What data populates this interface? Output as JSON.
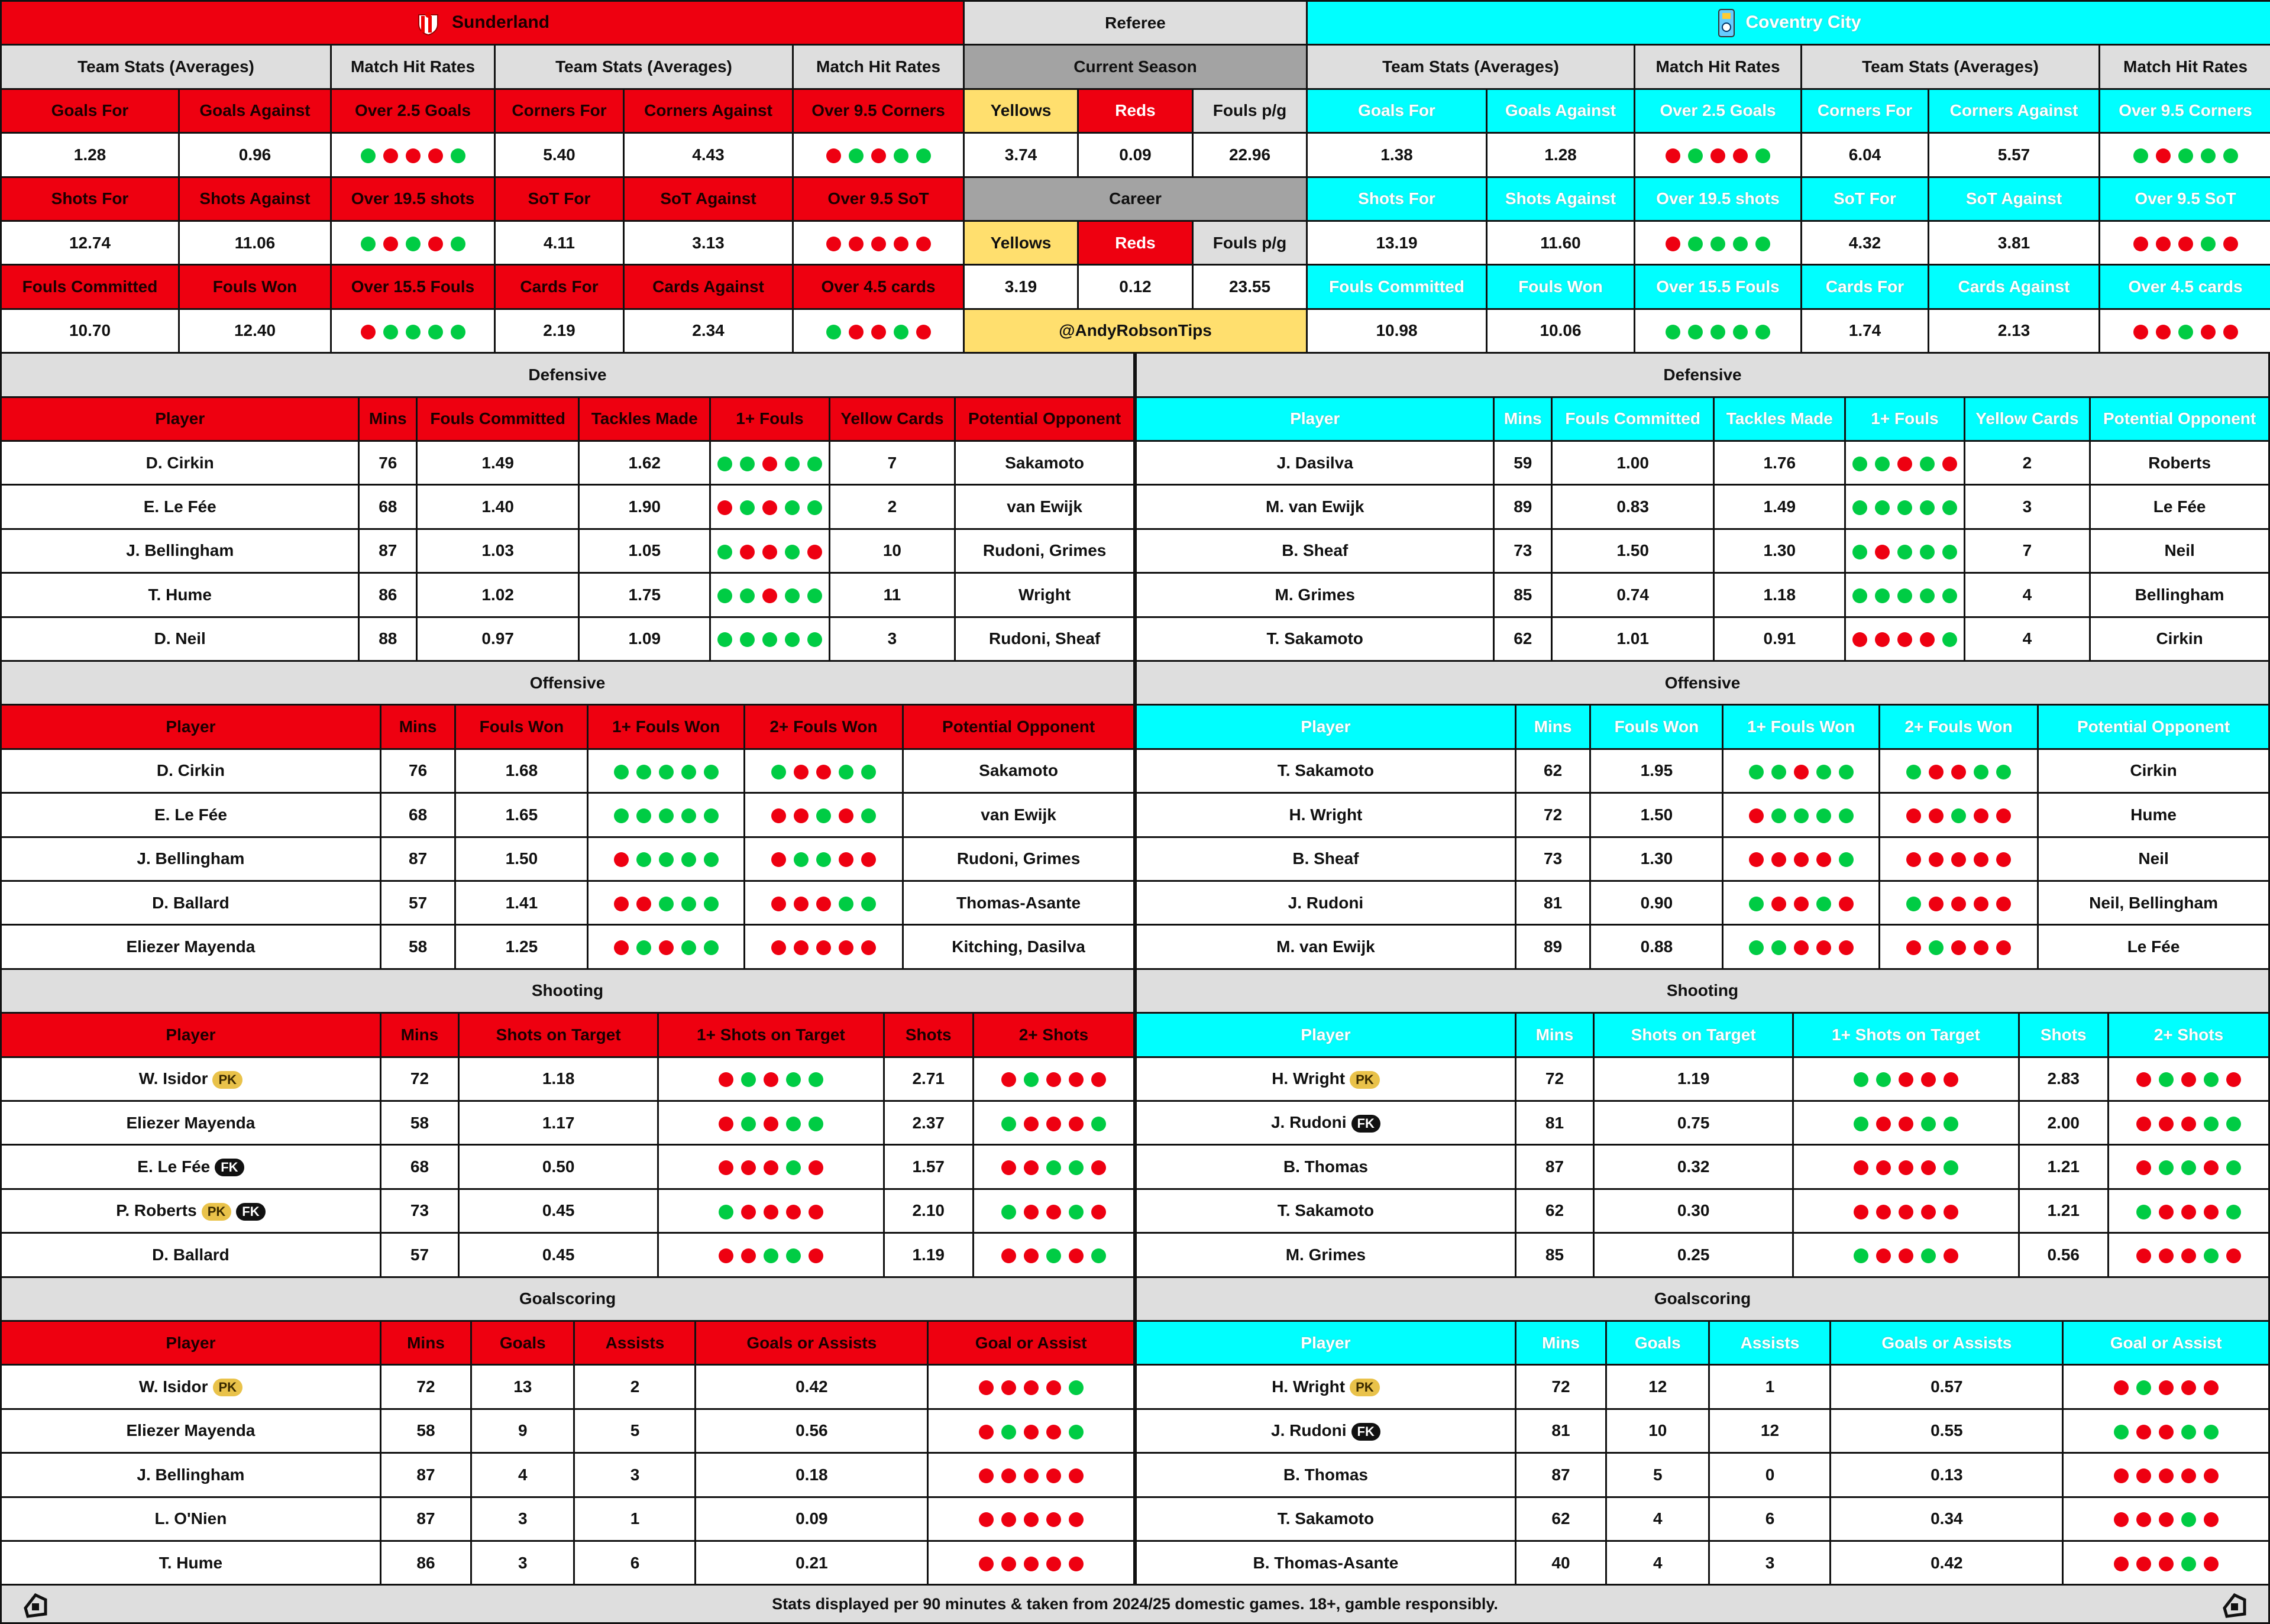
{
  "colors": {
    "sunderland": "#ee0010",
    "coventry": "#00ffff",
    "hit": "#00cc44",
    "miss": "#ee0011",
    "neutral": "#dedede",
    "referee_section": "#a3a3a3",
    "yellow": "#ffdf6e"
  },
  "teams": [
    {
      "name": "Sunderland",
      "theme": "red",
      "crest_icon": "sunderland-crest-icon",
      "group_labels": [
        "Team Stats (Averages)",
        "Match Hit Rates",
        "Team Stats (Averages)",
        "Match Hit Rates"
      ],
      "stats": [
        [
          {
            "label": "Goals For",
            "value": "1.28"
          },
          {
            "label": "Goals Against",
            "value": "0.96"
          },
          {
            "label": "Over 2.5 Goals",
            "dots": "GRRRG"
          },
          {
            "label": "Corners For",
            "value": "5.40"
          },
          {
            "label": "Corners Against",
            "value": "4.43"
          },
          {
            "label": "Over 9.5 Corners",
            "dots": "RGRGG"
          }
        ],
        [
          {
            "label": "Shots For",
            "value": "12.74"
          },
          {
            "label": "Shots Against",
            "value": "11.06"
          },
          {
            "label": "Over 19.5 shots",
            "dots": "GRGRG"
          },
          {
            "label": "SoT For",
            "value": "4.11"
          },
          {
            "label": "SoT Against",
            "value": "3.13"
          },
          {
            "label": "Over 9.5 SoT",
            "dots": "RRRRR"
          }
        ],
        [
          {
            "label": "Fouls Committed",
            "value": "10.70"
          },
          {
            "label": "Fouls Won",
            "value": "12.40"
          },
          {
            "label": "Over 15.5 Fouls",
            "dots": "RGGGG"
          },
          {
            "label": "Cards For",
            "value": "2.19"
          },
          {
            "label": "Cards Against",
            "value": "2.34"
          },
          {
            "label": "Over 4.5 cards",
            "dots": "GRRGR"
          }
        ]
      ],
      "sections": [
        {
          "title": "Defensive",
          "columns": [
            "Player",
            "Mins",
            "Fouls Committed",
            "Tackles Made",
            "1+ Fouls",
            "Yellow Cards",
            "Potential Opponent"
          ],
          "dot_columns": [
            4
          ],
          "rows": [
            {
              "cells": [
                "D. Cirkin",
                "76",
                "1.49",
                "1.62",
                "GGRGG",
                "7",
                "Sakamoto"
              ]
            },
            {
              "cells": [
                "E. Le Fée",
                "68",
                "1.40",
                "1.90",
                "RGRGG",
                "2",
                "van Ewijk"
              ]
            },
            {
              "cells": [
                "J. Bellingham",
                "87",
                "1.03",
                "1.05",
                "GRRGR",
                "10",
                "Rudoni, Grimes"
              ]
            },
            {
              "cells": [
                "T. Hume",
                "86",
                "1.02",
                "1.75",
                "GGRGG",
                "11",
                "Wright"
              ]
            },
            {
              "cells": [
                "D. Neil",
                "88",
                "0.97",
                "1.09",
                "GGGGG",
                "3",
                "Rudoni, Sheaf"
              ]
            }
          ]
        },
        {
          "title": "Offensive",
          "columns": [
            "Player",
            "Mins",
            "Fouls Won",
            "1+ Fouls Won",
            "2+ Fouls Won",
            "Potential Opponent"
          ],
          "dot_columns": [
            3,
            4
          ],
          "rows": [
            {
              "cells": [
                "D. Cirkin",
                "76",
                "1.68",
                "GGGGG",
                "GRRGG",
                "Sakamoto"
              ]
            },
            {
              "cells": [
                "E. Le Fée",
                "68",
                "1.65",
                "GGGGG",
                "RRGRG",
                "van Ewijk"
              ]
            },
            {
              "cells": [
                "J. Bellingham",
                "87",
                "1.50",
                "RGGGG",
                "RGGRR",
                "Rudoni, Grimes"
              ]
            },
            {
              "cells": [
                "D. Ballard",
                "57",
                "1.41",
                "RRGGG",
                "RRRGG",
                "Thomas-Asante"
              ]
            },
            {
              "cells": [
                "Eliezer Mayenda",
                "58",
                "1.25",
                "RGRGG",
                "RRRRR",
                "Kitching, Dasilva"
              ]
            }
          ]
        },
        {
          "title": "Shooting",
          "columns": [
            "Player",
            "Mins",
            "Shots on Target",
            "1+ Shots on Target",
            "Shots",
            "2+ Shots"
          ],
          "dot_columns": [
            3,
            5
          ],
          "rows": [
            {
              "cells": [
                "W. Isidor",
                "72",
                "1.18",
                "RGRGG",
                "2.71",
                "RGRRR"
              ],
              "badges": [
                "PK"
              ]
            },
            {
              "cells": [
                "Eliezer Mayenda",
                "58",
                "1.17",
                "RGRGG",
                "2.37",
                "GRRRG"
              ]
            },
            {
              "cells": [
                "E. Le Fée",
                "68",
                "0.50",
                "RRRGR",
                "1.57",
                "RRGGR"
              ],
              "badges": [
                "FK"
              ]
            },
            {
              "cells": [
                "P. Roberts",
                "73",
                "0.45",
                "GRRRR",
                "2.10",
                "GRRGR"
              ],
              "badges": [
                "PK",
                "FK"
              ]
            },
            {
              "cells": [
                "D. Ballard",
                "57",
                "0.45",
                "RRGGR",
                "1.19",
                "RRGRG"
              ]
            }
          ]
        },
        {
          "title": "Goalscoring",
          "columns": [
            "Player",
            "Mins",
            "Goals",
            "Assists",
            "Goals or Assists",
            "Goal or Assist"
          ],
          "dot_columns": [
            5
          ],
          "rows": [
            {
              "cells": [
                "W. Isidor",
                "72",
                "13",
                "2",
                "0.42",
                "RRRRG"
              ],
              "badges": [
                "PK"
              ]
            },
            {
              "cells": [
                "Eliezer Mayenda",
                "58",
                "9",
                "5",
                "0.56",
                "RGRRG"
              ]
            },
            {
              "cells": [
                "J. Bellingham",
                "87",
                "4",
                "3",
                "0.18",
                "RRRRR"
              ]
            },
            {
              "cells": [
                "L. O'Nien",
                "87",
                "3",
                "1",
                "0.09",
                "RRRRR"
              ]
            },
            {
              "cells": [
                "T. Hume",
                "86",
                "3",
                "6",
                "0.21",
                "RRRRR"
              ]
            }
          ]
        }
      ]
    },
    {
      "name": "Coventry City",
      "theme": "cyan",
      "crest_icon": "coventry-crest-icon",
      "group_labels": [
        "Team Stats (Averages)",
        "Match Hit Rates",
        "Team Stats (Averages)",
        "Match Hit Rates"
      ],
      "stats": [
        [
          {
            "label": "Goals For",
            "value": "1.38"
          },
          {
            "label": "Goals Against",
            "value": "1.28"
          },
          {
            "label": "Over 2.5 Goals",
            "dots": "RGRRG"
          },
          {
            "label": "Corners For",
            "value": "6.04"
          },
          {
            "label": "Corners Against",
            "value": "5.57"
          },
          {
            "label": "Over 9.5 Corners",
            "dots": "GRGGG"
          }
        ],
        [
          {
            "label": "Shots For",
            "value": "13.19"
          },
          {
            "label": "Shots Against",
            "value": "11.60"
          },
          {
            "label": "Over 19.5 shots",
            "dots": "RGGGG"
          },
          {
            "label": "SoT For",
            "value": "4.32"
          },
          {
            "label": "SoT Against",
            "value": "3.81"
          },
          {
            "label": "Over 9.5 SoT",
            "dots": "RRRGR"
          }
        ],
        [
          {
            "label": "Fouls Committed",
            "value": "10.98"
          },
          {
            "label": "Fouls Won",
            "value": "10.06"
          },
          {
            "label": "Over 15.5 Fouls",
            "dots": "GGGGG"
          },
          {
            "label": "Cards For",
            "value": "1.74"
          },
          {
            "label": "Cards Against",
            "value": "2.13"
          },
          {
            "label": "Over 4.5 cards",
            "dots": "RRGRR"
          }
        ]
      ],
      "sections": [
        {
          "title": "Defensive",
          "columns": [
            "Player",
            "Mins",
            "Fouls Committed",
            "Tackles Made",
            "1+ Fouls",
            "Yellow Cards",
            "Potential Opponent"
          ],
          "dot_columns": [
            4
          ],
          "rows": [
            {
              "cells": [
                "J. Dasilva",
                "59",
                "1.00",
                "1.76",
                "GGRGR",
                "2",
                "Roberts"
              ]
            },
            {
              "cells": [
                "M. van Ewijk",
                "89",
                "0.83",
                "1.49",
                "GGGGG",
                "3",
                "Le Fée"
              ]
            },
            {
              "cells": [
                "B. Sheaf",
                "73",
                "1.50",
                "1.30",
                "GRGGG",
                "7",
                "Neil"
              ]
            },
            {
              "cells": [
                "M. Grimes",
                "85",
                "0.74",
                "1.18",
                "GGGGG",
                "4",
                "Bellingham"
              ]
            },
            {
              "cells": [
                "T. Sakamoto",
                "62",
                "1.01",
                "0.91",
                "RRRRG",
                "4",
                "Cirkin"
              ]
            }
          ]
        },
        {
          "title": "Offensive",
          "columns": [
            "Player",
            "Mins",
            "Fouls Won",
            "1+ Fouls Won",
            "2+ Fouls Won",
            "Potential Opponent"
          ],
          "dot_columns": [
            3,
            4
          ],
          "rows": [
            {
              "cells": [
                "T. Sakamoto",
                "62",
                "1.95",
                "GGRGG",
                "GRRGG",
                "Cirkin"
              ]
            },
            {
              "cells": [
                "H. Wright",
                "72",
                "1.50",
                "RGGGG",
                "RRGRR",
                "Hume"
              ]
            },
            {
              "cells": [
                "B. Sheaf",
                "73",
                "1.30",
                "RRRRG",
                "RRRRR",
                "Neil"
              ]
            },
            {
              "cells": [
                "J. Rudoni",
                "81",
                "0.90",
                "GRRGR",
                "GRRRR",
                "Neil, Bellingham"
              ]
            },
            {
              "cells": [
                "M. van Ewijk",
                "89",
                "0.88",
                "GGRRR",
                "RGRRR",
                "Le Fée"
              ]
            }
          ]
        },
        {
          "title": "Shooting",
          "columns": [
            "Player",
            "Mins",
            "Shots on Target",
            "1+ Shots on Target",
            "Shots",
            "2+ Shots"
          ],
          "dot_columns": [
            3,
            5
          ],
          "rows": [
            {
              "cells": [
                "H. Wright",
                "72",
                "1.19",
                "GGRRR",
                "2.83",
                "RGRGR"
              ],
              "badges": [
                "PK"
              ]
            },
            {
              "cells": [
                "J. Rudoni",
                "81",
                "0.75",
                "GRRGG",
                "2.00",
                "RRRGG"
              ],
              "badges": [
                "FK"
              ]
            },
            {
              "cells": [
                "B. Thomas",
                "87",
                "0.32",
                "RRRRG",
                "1.21",
                "RGGRG"
              ]
            },
            {
              "cells": [
                "T. Sakamoto",
                "62",
                "0.30",
                "RRRRR",
                "1.21",
                "GRRRG"
              ]
            },
            {
              "cells": [
                "M. Grimes",
                "85",
                "0.25",
                "GRRGR",
                "0.56",
                "RRRGR"
              ]
            }
          ]
        },
        {
          "title": "Goalscoring",
          "columns": [
            "Player",
            "Mins",
            "Goals",
            "Assists",
            "Goals or Assists",
            "Goal or Assist"
          ],
          "dot_columns": [
            5
          ],
          "rows": [
            {
              "cells": [
                "H. Wright",
                "72",
                "12",
                "1",
                "0.57",
                "RGRRR"
              ],
              "badges": [
                "PK"
              ]
            },
            {
              "cells": [
                "J. Rudoni",
                "81",
                "10",
                "12",
                "0.55",
                "GRRGG"
              ],
              "badges": [
                "FK"
              ]
            },
            {
              "cells": [
                "B. Thomas",
                "87",
                "5",
                "0",
                "0.13",
                "RRRRR"
              ]
            },
            {
              "cells": [
                "T. Sakamoto",
                "62",
                "4",
                "6",
                "0.34",
                "RRRGR"
              ]
            },
            {
              "cells": [
                "B. Thomas-Asante",
                "40",
                "4",
                "3",
                "0.42",
                "RRRGR"
              ]
            }
          ]
        }
      ]
    }
  ],
  "referee": {
    "title": "Referee",
    "current_label": "Current Season",
    "career_label": "Career",
    "columns": [
      "Yellows",
      "Reds",
      "Fouls p/g"
    ],
    "current": [
      "3.74",
      "0.09",
      "22.96"
    ],
    "career": [
      "3.19",
      "0.12",
      "23.55"
    ],
    "handle": "@AndyRobsonTips"
  },
  "footer": {
    "text": "Stats displayed per 90 minutes & taken from 2024/25 domestic games. 18+, gamble responsibly.",
    "icon": "brand-logo-icon"
  }
}
